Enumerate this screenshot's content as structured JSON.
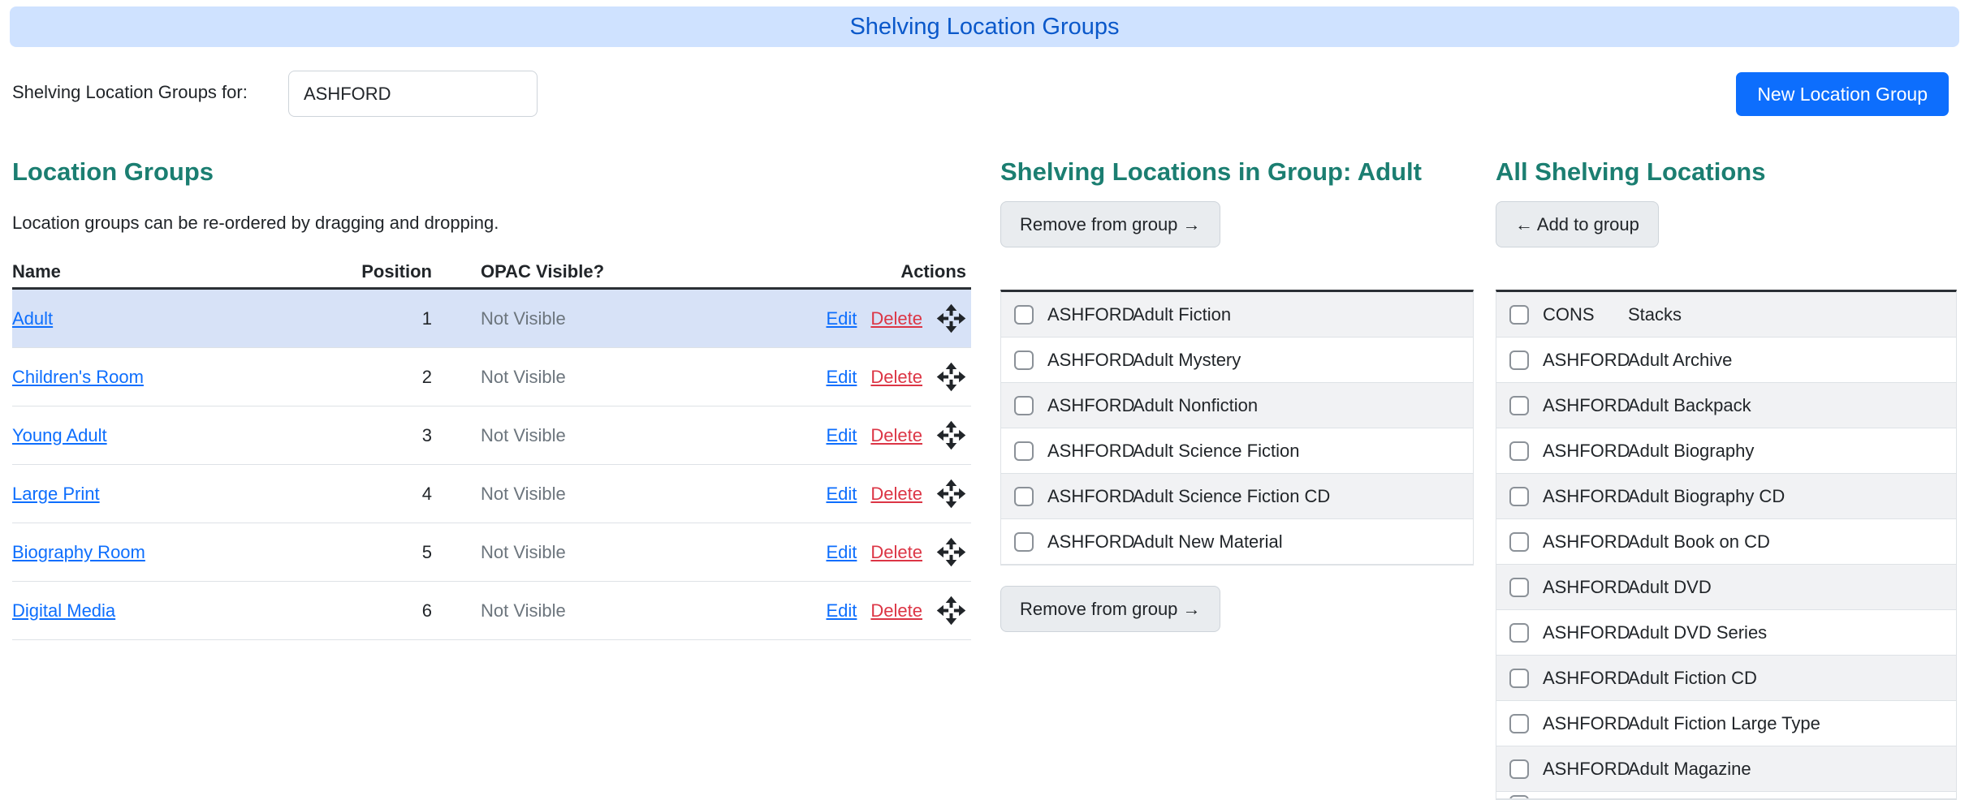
{
  "header": {
    "title": "Shelving Location Groups",
    "context_label": "Shelving Location Groups for:",
    "context_value": "ASHFORD",
    "new_group_button": "New Location Group"
  },
  "location_groups": {
    "heading": "Location Groups",
    "subtitle": "Location groups can be re-ordered by dragging and dropping.",
    "columns": {
      "name": "Name",
      "position": "Position",
      "opac": "OPAC Visible?",
      "actions": "Actions"
    },
    "action_labels": {
      "edit": "Edit",
      "delete": "Delete",
      "move_icon": "arrows-move-icon"
    },
    "rows": [
      {
        "name": "Adult",
        "position": "1",
        "opac": "Not Visible",
        "selected": true
      },
      {
        "name": "Children's Room",
        "position": "2",
        "opac": "Not Visible"
      },
      {
        "name": "Young Adult",
        "position": "3",
        "opac": "Not Visible"
      },
      {
        "name": "Large Print",
        "position": "4",
        "opac": "Not Visible"
      },
      {
        "name": "Biography Room",
        "position": "5",
        "opac": "Not Visible"
      },
      {
        "name": "Digital Media",
        "position": "6",
        "opac": "Not Visible"
      }
    ]
  },
  "group_locations": {
    "heading": "Shelving Locations in Group: Adult",
    "remove_button": "Remove from group →",
    "items": [
      {
        "org": "ASHFORD",
        "name": "Adult Fiction"
      },
      {
        "org": "ASHFORD",
        "name": "Adult Mystery"
      },
      {
        "org": "ASHFORD",
        "name": "Adult Nonfiction"
      },
      {
        "org": "ASHFORD",
        "name": "Adult Science Fiction"
      },
      {
        "org": "ASHFORD",
        "name": "Adult Science Fiction CD"
      },
      {
        "org": "ASHFORD",
        "name": "Adult New Material"
      }
    ]
  },
  "all_locations": {
    "heading": "All Shelving Locations",
    "add_button": "← Add to group",
    "items": [
      {
        "org": "CONS",
        "name": "Stacks"
      },
      {
        "org": "ASHFORD",
        "name": "Adult Archive"
      },
      {
        "org": "ASHFORD",
        "name": "Adult Backpack"
      },
      {
        "org": "ASHFORD",
        "name": "Adult Biography"
      },
      {
        "org": "ASHFORD",
        "name": "Adult Biography CD"
      },
      {
        "org": "ASHFORD",
        "name": "Adult Book on CD"
      },
      {
        "org": "ASHFORD",
        "name": "Adult DVD"
      },
      {
        "org": "ASHFORD",
        "name": "Adult DVD Series"
      },
      {
        "org": "ASHFORD",
        "name": "Adult Fiction CD"
      },
      {
        "org": "ASHFORD",
        "name": "Adult Fiction Large Type"
      },
      {
        "org": "ASHFORD",
        "name": "Adult Magazine"
      }
    ],
    "partial_next_row": true
  },
  "colors": {
    "header_bar_bg": "#cfe2ff",
    "header_bar_text": "#0a58ca",
    "accent_teal": "#1b7e71",
    "primary_button_blue": "#0d6efd",
    "link_blue": "#0d6efd",
    "delete_red": "#dc3545",
    "muted_gray": "#6c757d",
    "selected_row_bg": "#d7e2f7",
    "stripe_bg": "#f1f2f4",
    "dark_border": "#2b3035"
  }
}
